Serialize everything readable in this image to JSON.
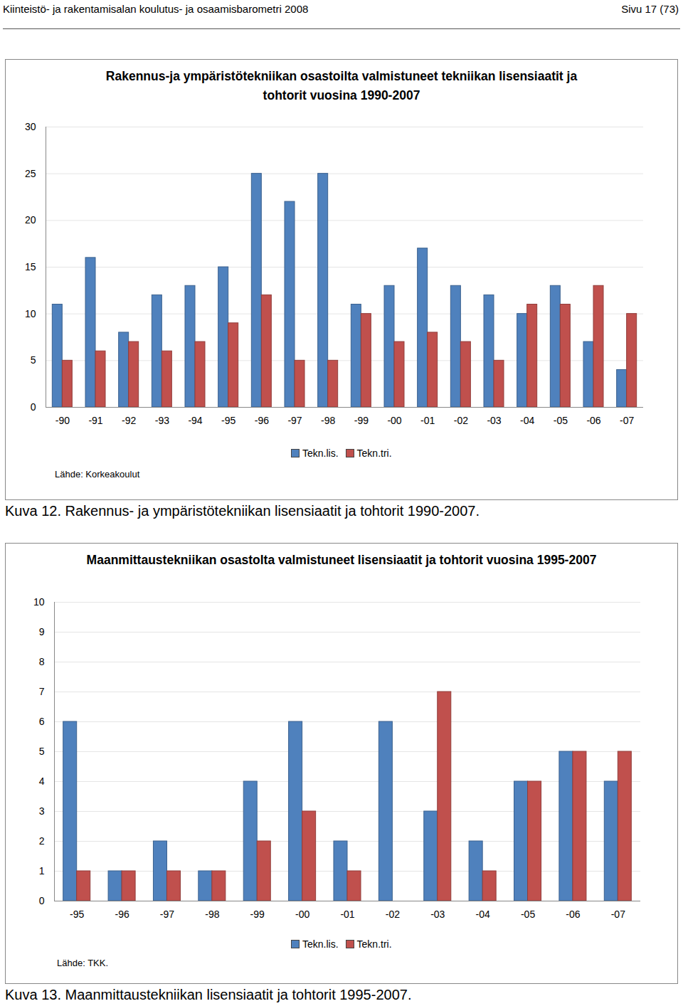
{
  "header": {
    "left": "Kiinteistö- ja rakentamisalan koulutus- ja osaamisbarometri 2008",
    "right": "Sivu 17 (73)"
  },
  "chart_data": [
    {
      "type": "bar",
      "title": "Rakennus-ja ympäristötekniikan osastoilta valmistuneet tekniikan lisensiaatit ja tohtorit vuosina 1990-2007",
      "categories": [
        "-90",
        "-91",
        "-92",
        "-93",
        "-94",
        "-95",
        "-96",
        "-97",
        "-98",
        "-99",
        "-00",
        "-01",
        "-02",
        "-03",
        "-04",
        "-05",
        "-06",
        "-07"
      ],
      "series": [
        {
          "name": "Tekn.lis.",
          "color": "#4f81bd",
          "values": [
            11,
            16,
            8,
            12,
            13,
            15,
            25,
            22,
            25,
            11,
            13,
            17,
            13,
            12,
            10,
            13,
            7,
            4
          ]
        },
        {
          "name": "Tekn.tri.",
          "color": "#c0504d",
          "values": [
            5,
            6,
            7,
            6,
            7,
            9,
            12,
            5,
            5,
            10,
            7,
            8,
            7,
            5,
            11,
            11,
            13,
            10
          ]
        }
      ],
      "ylim": [
        0,
        30
      ],
      "yticks": [
        0,
        5,
        10,
        15,
        20,
        25,
        30
      ],
      "grid": true,
      "legend": "bottom",
      "source": "Lähde: Korkeakoulut",
      "caption": "Kuva 12. Rakennus- ja ympäristötekniikan lisensiaatit ja tohtorit 1990-2007."
    },
    {
      "type": "bar",
      "title": "Maanmittaustekniikan osastolta valmistuneet lisensiaatit ja tohtorit vuosina 1995-2007",
      "categories": [
        "-95",
        "-96",
        "-97",
        "-98",
        "-99",
        "-00",
        "-01",
        "-02",
        "-03",
        "-04",
        "-05",
        "-06",
        "-07"
      ],
      "series": [
        {
          "name": "Tekn.lis.",
          "color": "#4f81bd",
          "values": [
            6,
            1,
            2,
            1,
            4,
            6,
            2,
            6,
            3,
            2,
            4,
            5,
            4
          ]
        },
        {
          "name": "Tekn.tri.",
          "color": "#c0504d",
          "values": [
            1,
            1,
            1,
            1,
            2,
            3,
            1,
            0,
            7,
            1,
            4,
            5,
            5
          ]
        }
      ],
      "ylim": [
        0,
        10
      ],
      "yticks": [
        0,
        1,
        2,
        3,
        4,
        5,
        6,
        7,
        8,
        9,
        10
      ],
      "grid": true,
      "legend": "bottom",
      "source": "Lähde: TKK.",
      "caption": "Kuva 13. Maanmittaustekniikan lisensiaatit ja tohtorit 1995-2007."
    }
  ]
}
